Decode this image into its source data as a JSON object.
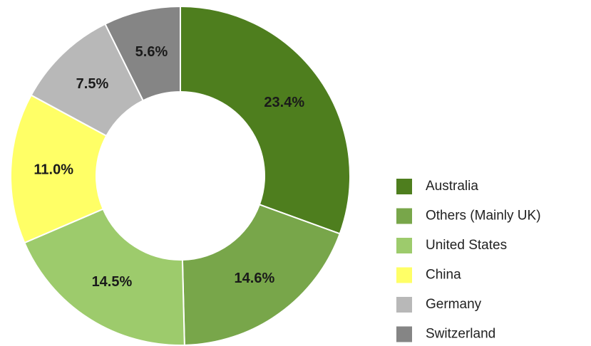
{
  "chart_data": {
    "type": "donut",
    "categories": [
      "Australia",
      "Others (Mainly UK)",
      "United States",
      "China",
      "Germany",
      "Switzerland"
    ],
    "values": [
      23.4,
      14.6,
      14.5,
      11.0,
      7.5,
      5.6
    ],
    "value_labels": [
      "23.4%",
      "14.6%",
      "14.5%",
      "11.0%",
      "7.5%",
      "5.6%"
    ],
    "colors": [
      "#4e7e1e",
      "#78a64a",
      "#9dcb6c",
      "#ffff66",
      "#b8b8b8",
      "#858585"
    ],
    "legend": "right"
  }
}
